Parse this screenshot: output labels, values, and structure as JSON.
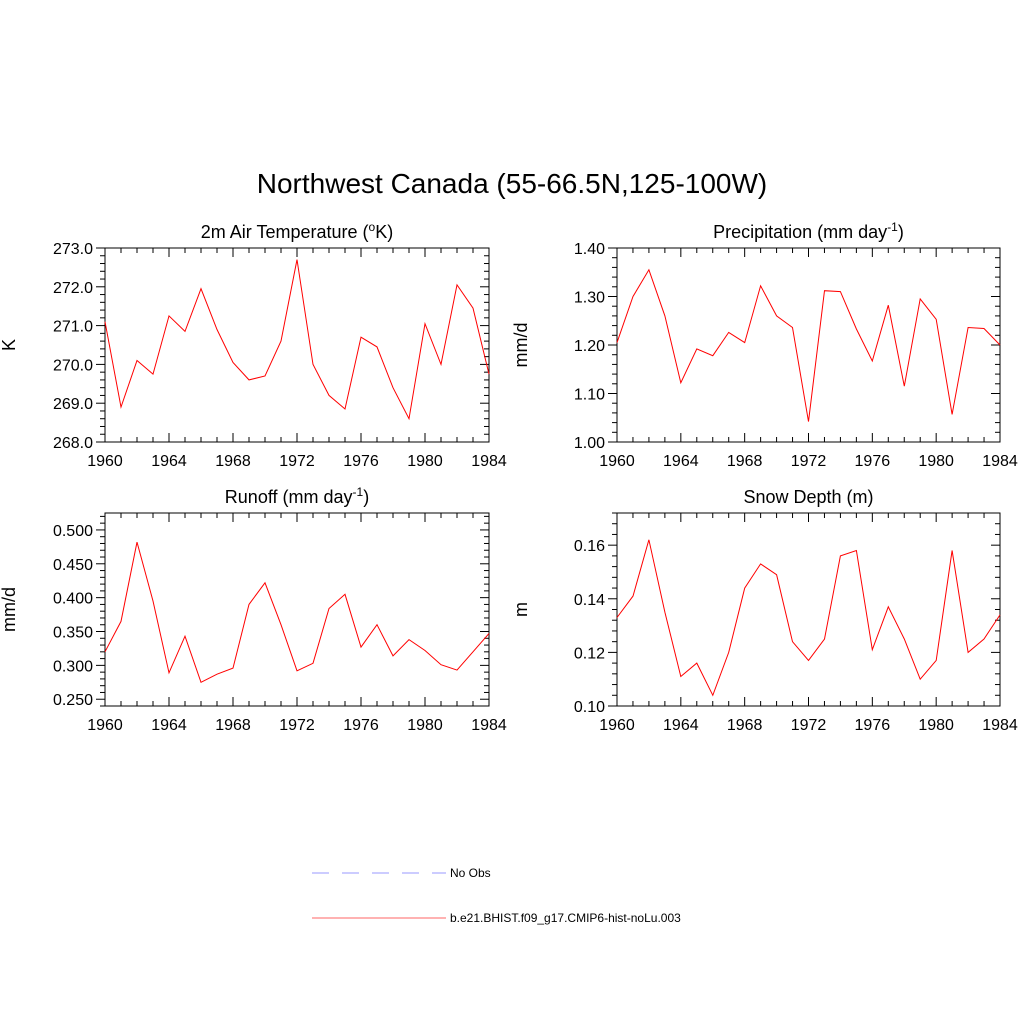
{
  "figure_title": "Northwest Canada (55-66.5N,125-100W)",
  "chart_data": [
    {
      "type": "line",
      "title_main": "2m Air Temperature (",
      "title_sup": "o",
      "title_tail": "K)",
      "ylabel": "K",
      "xlim": [
        1960,
        1984
      ],
      "ylim": [
        268.0,
        273.0
      ],
      "xticks": [
        "1960",
        "1964",
        "1968",
        "1972",
        "1976",
        "1980",
        "1984"
      ],
      "yticks": [
        "268.0",
        "269.0",
        "270.0",
        "271.0",
        "272.0",
        "273.0"
      ],
      "series": [
        {
          "color": "#ff0000",
          "x": [
            1960,
            1961,
            1962,
            1963,
            1964,
            1965,
            1966,
            1967,
            1968,
            1969,
            1970,
            1971,
            1972,
            1973,
            1974,
            1975,
            1976,
            1977,
            1978,
            1979,
            1980,
            1981,
            1982,
            1983,
            1984
          ],
          "y": [
            271.1,
            268.9,
            270.1,
            269.75,
            271.25,
            270.85,
            271.95,
            270.9,
            270.05,
            269.6,
            269.7,
            270.6,
            272.7,
            270.0,
            269.2,
            268.85,
            270.7,
            270.45,
            269.4,
            268.6,
            271.05,
            270.0,
            272.05,
            271.45,
            269.75
          ]
        }
      ]
    },
    {
      "type": "line",
      "title_main": "Precipitation (mm day",
      "title_sup": "-1",
      "title_tail": ")",
      "ylabel": "mm/d",
      "xlim": [
        1960,
        1984
      ],
      "ylim": [
        1.0,
        1.4
      ],
      "xticks": [
        "1960",
        "1964",
        "1968",
        "1972",
        "1976",
        "1980",
        "1984"
      ],
      "yticks": [
        "1.00",
        "1.10",
        "1.20",
        "1.30",
        "1.40"
      ],
      "series": [
        {
          "color": "#ff0000",
          "x": [
            1960,
            1961,
            1962,
            1963,
            1964,
            1965,
            1966,
            1967,
            1968,
            1969,
            1970,
            1971,
            1972,
            1973,
            1974,
            1975,
            1976,
            1977,
            1978,
            1979,
            1980,
            1981,
            1982,
            1983,
            1984
          ],
          "y": [
            1.205,
            1.3,
            1.355,
            1.26,
            1.122,
            1.192,
            1.178,
            1.226,
            1.205,
            1.322,
            1.26,
            1.236,
            1.042,
            1.312,
            1.31,
            1.233,
            1.167,
            1.282,
            1.115,
            1.295,
            1.253,
            1.057,
            1.236,
            1.234,
            1.2
          ]
        }
      ]
    },
    {
      "type": "line",
      "title_main": "Runoff (mm day",
      "title_sup": "-1",
      "title_tail": ")",
      "ylabel": "mm/d",
      "xlim": [
        1960,
        1984
      ],
      "ylim": [
        0.24,
        0.525
      ],
      "xticks": [
        "1960",
        "1964",
        "1968",
        "1972",
        "1976",
        "1980",
        "1984"
      ],
      "yticks": [
        "0.250",
        "0.300",
        "0.350",
        "0.400",
        "0.450",
        "0.500"
      ],
      "series": [
        {
          "color": "#ff0000",
          "x": [
            1960,
            1961,
            1962,
            1963,
            1964,
            1965,
            1966,
            1967,
            1968,
            1969,
            1970,
            1971,
            1972,
            1973,
            1974,
            1975,
            1976,
            1977,
            1978,
            1979,
            1980,
            1981,
            1982,
            1983,
            1984
          ],
          "y": [
            0.32,
            0.365,
            0.482,
            0.395,
            0.289,
            0.343,
            0.275,
            0.287,
            0.296,
            0.39,
            0.422,
            0.36,
            0.292,
            0.303,
            0.384,
            0.405,
            0.327,
            0.36,
            0.314,
            0.338,
            0.322,
            0.301,
            0.293,
            0.32,
            0.347
          ]
        }
      ]
    },
    {
      "type": "line",
      "title_main": "Snow Depth (m)",
      "title_sup": "",
      "title_tail": "",
      "ylabel": "m",
      "xlim": [
        1960,
        1984
      ],
      "ylim": [
        0.1,
        0.172
      ],
      "xticks": [
        "1960",
        "1964",
        "1968",
        "1972",
        "1976",
        "1980",
        "1984"
      ],
      "yticks": [
        "0.10",
        "0.12",
        "0.14",
        "0.16"
      ],
      "series": [
        {
          "color": "#ff0000",
          "x": [
            1960,
            1961,
            1962,
            1963,
            1964,
            1965,
            1966,
            1967,
            1968,
            1969,
            1970,
            1971,
            1972,
            1973,
            1974,
            1975,
            1976,
            1977,
            1978,
            1979,
            1980,
            1981,
            1982,
            1983,
            1984
          ],
          "y": [
            0.133,
            0.141,
            0.162,
            0.135,
            0.111,
            0.116,
            0.104,
            0.12,
            0.144,
            0.153,
            0.149,
            0.124,
            0.117,
            0.125,
            0.156,
            0.158,
            0.121,
            0.137,
            0.125,
            0.11,
            0.117,
            0.158,
            0.12,
            0.125,
            0.134
          ]
        }
      ]
    }
  ],
  "legend": [
    {
      "label": "No Obs",
      "color": "#9999ff",
      "style": "dashed"
    },
    {
      "label": "b.e21.BHIST.f09_g17.CMIP6-hist-noLu.003",
      "color": "#ff6666",
      "style": "solid"
    }
  ]
}
